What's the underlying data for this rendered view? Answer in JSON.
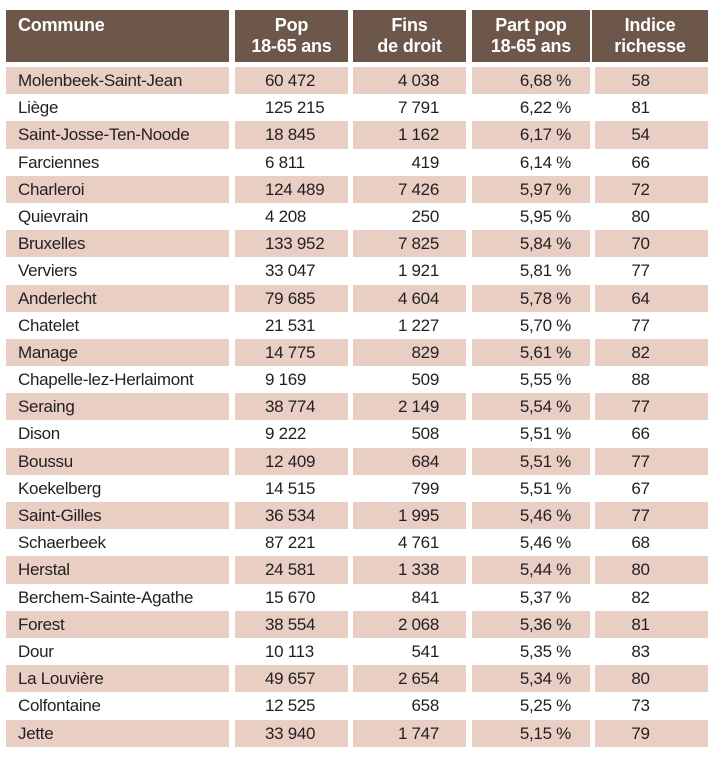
{
  "table": {
    "headers": {
      "commune": "Commune",
      "pop": "Pop\n18-65 ans",
      "fins": "Fins\nde droit",
      "part": "Part pop\n18-65 ans",
      "indice": "Indice\nrichesse"
    },
    "rows": [
      {
        "commune": "Molenbeek-Saint-Jean",
        "pop": "60 472",
        "fins": "4 038",
        "part": "6,68 %",
        "indice": "58"
      },
      {
        "commune": "Liège",
        "pop": "125 215",
        "fins": "7 791",
        "part": "6,22 %",
        "indice": "81"
      },
      {
        "commune": "Saint-Josse-Ten-Noode",
        "pop": "18 845",
        "fins": "1 162",
        "part": "6,17 %",
        "indice": "54"
      },
      {
        "commune": "Farciennes",
        "pop": "6 811",
        "fins": "419",
        "part": "6,14 %",
        "indice": "66"
      },
      {
        "commune": "Charleroi",
        "pop": "124 489",
        "fins": "7 426",
        "part": "5,97 %",
        "indice": "72"
      },
      {
        "commune": "Quievrain",
        "pop": "4 208",
        "fins": "250",
        "part": "5,95 %",
        "indice": "80"
      },
      {
        "commune": "Bruxelles",
        "pop": "133 952",
        "fins": "7 825",
        "part": "5,84 %",
        "indice": "70"
      },
      {
        "commune": "Verviers",
        "pop": "33 047",
        "fins": "1 921",
        "part": "5,81 %",
        "indice": "77"
      },
      {
        "commune": "Anderlecht",
        "pop": "79 685",
        "fins": "4 604",
        "part": "5,78 %",
        "indice": "64"
      },
      {
        "commune": "Chatelet",
        "pop": "21 531",
        "fins": "1 227",
        "part": "5,70 %",
        "indice": "77"
      },
      {
        "commune": "Manage",
        "pop": "14 775",
        "fins": "829",
        "part": "5,61 %",
        "indice": "82"
      },
      {
        "commune": "Chapelle-lez-Herlaimont",
        "pop": "9 169",
        "fins": "509",
        "part": "5,55 %",
        "indice": "88"
      },
      {
        "commune": "Seraing",
        "pop": "38 774",
        "fins": "2 149",
        "part": "5,54 %",
        "indice": "77"
      },
      {
        "commune": "Dison",
        "pop": "9 222",
        "fins": "508",
        "part": "5,51 %",
        "indice": "66"
      },
      {
        "commune": "Boussu",
        "pop": "12 409",
        "fins": "684",
        "part": "5,51 %",
        "indice": "77"
      },
      {
        "commune": "Koekelberg",
        "pop": "14 515",
        "fins": "799",
        "part": "5,51 %",
        "indice": "67"
      },
      {
        "commune": "Saint-Gilles",
        "pop": "36 534",
        "fins": "1 995",
        "part": "5,46 %",
        "indice": "77"
      },
      {
        "commune": "Schaerbeek",
        "pop": "87 221",
        "fins": "4 761",
        "part": "5,46 %",
        "indice": "68"
      },
      {
        "commune": "Herstal",
        "pop": "24 581",
        "fins": "1 338",
        "part": "5,44 %",
        "indice": "80"
      },
      {
        "commune": "Berchem-Sainte-Agathe",
        "pop": "15 670",
        "fins": "841",
        "part": "5,37 %",
        "indice": "82"
      },
      {
        "commune": "Forest",
        "pop": "38 554",
        "fins": "2 068",
        "part": "5,36 %",
        "indice": "81"
      },
      {
        "commune": "Dour",
        "pop": "10 113",
        "fins": "541",
        "part": "5,35 %",
        "indice": "83"
      },
      {
        "commune": "La Louvière",
        "pop": "49 657",
        "fins": "2 654",
        "part": "5,34 %",
        "indice": "80"
      },
      {
        "commune": "Colfontaine",
        "pop": "12 525",
        "fins": "658",
        "part": "5,25 %",
        "indice": "73"
      },
      {
        "commune": "Jette",
        "pop": "33 940",
        "fins": "1 747",
        "part": "5,15 %",
        "indice": "79"
      }
    ],
    "colors": {
      "header_bg": "#6d564a",
      "header_text": "#ffffff",
      "row_alt_bg": "#e8cec3",
      "body_text": "#231f20"
    }
  }
}
